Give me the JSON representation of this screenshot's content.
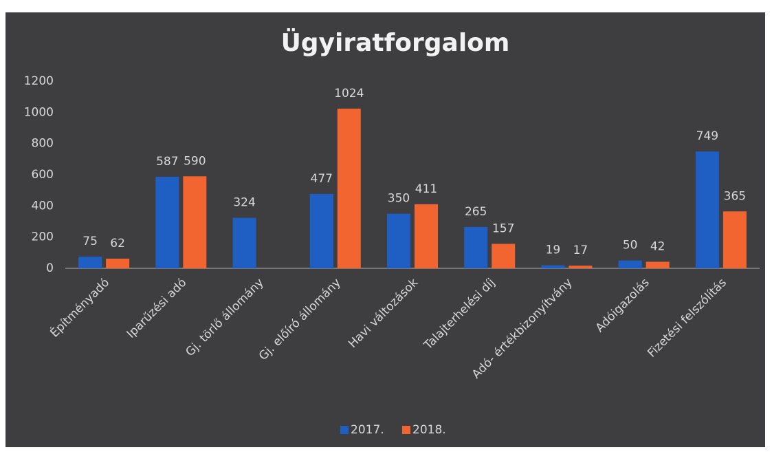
{
  "chart_data": {
    "type": "bar",
    "title": "Ügyiratforgalom",
    "categories": [
      "Építményadó",
      "Iparűzési adó",
      "Gj. törlő állomány",
      "Gj. előíró állomány",
      "Havi változások",
      "Talajterhelési díj",
      "Adó- értékbizonyítvány",
      "Adóigazolás",
      "Fizetési felszólítás"
    ],
    "series": [
      {
        "name": "2017.",
        "color": "#1f5fc4",
        "values": [
          75,
          587,
          324,
          477,
          350,
          265,
          19,
          50,
          749
        ]
      },
      {
        "name": "2018.",
        "color": "#f26430",
        "values": [
          62,
          590,
          null,
          1024,
          411,
          157,
          17,
          42,
          365
        ]
      }
    ],
    "ylim": [
      0,
      1200
    ],
    "yticks": [
      0,
      200,
      400,
      600,
      800,
      1000,
      1200
    ],
    "grid": false,
    "legend": "bottom"
  }
}
